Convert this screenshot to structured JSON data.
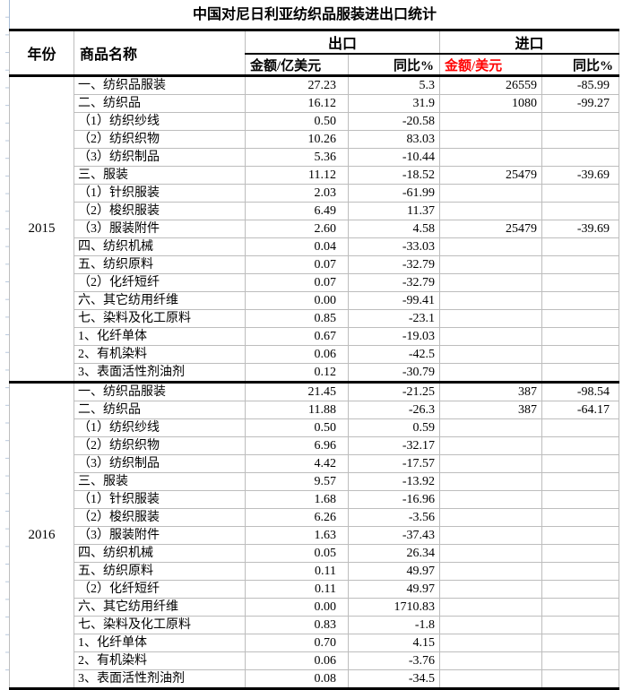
{
  "title": "中国对尼日利亚纺织品服装进出口统计",
  "header": {
    "year": "年份",
    "commodity": "商品名称",
    "export_group": "出口",
    "import_group": "进口",
    "export_amount": "金额/亿美元",
    "export_yoy": "同比%",
    "import_amount": "金额/美元",
    "import_yoy": "同比%"
  },
  "colors": {
    "import_amount_header": "#ff0000",
    "heavy_border": "#000000",
    "grid_line": "#bdbdbd",
    "excel_gridline": "#a9bdd6"
  },
  "chart_data": {
    "type": "table",
    "title": "中国对尼日利亚纺织品服装进出口统计",
    "column_groups": [
      "出口",
      "进口"
    ],
    "columns": [
      "年份",
      "商品名称",
      "出口 金额/亿美元",
      "出口 同比%",
      "进口 金额/美元",
      "进口 同比%"
    ],
    "sections": [
      {
        "year": "2015",
        "rows": [
          [
            "一、纺织品服装",
            "27.23",
            "5.3",
            "26559",
            "-85.99"
          ],
          [
            "二、纺织品",
            "16.12",
            "31.9",
            "1080",
            "-99.27"
          ],
          [
            "（1）纺织纱线",
            "0.50",
            "-20.58",
            "",
            ""
          ],
          [
            "（2）纺织织物",
            "10.26",
            "83.03",
            "",
            ""
          ],
          [
            "（3）纺织制品",
            "5.36",
            "-10.44",
            "",
            ""
          ],
          [
            "三、服装",
            "11.12",
            "-18.52",
            "25479",
            "-39.69"
          ],
          [
            "（1）针织服装",
            "2.03",
            "-61.99",
            "",
            ""
          ],
          [
            "（2）梭织服装",
            "6.49",
            "11.37",
            "",
            ""
          ],
          [
            "（3）服装附件",
            "2.60",
            "4.58",
            "25479",
            "-39.69"
          ],
          [
            "四、纺织机械",
            "0.04",
            "-33.03",
            "",
            ""
          ],
          [
            "五、纺织原料",
            "0.07",
            "-32.79",
            "",
            ""
          ],
          [
            "（2）化纤短纤",
            "0.07",
            "-32.79",
            "",
            ""
          ],
          [
            "六、其它纺用纤维",
            "0.00",
            "-99.41",
            "",
            ""
          ],
          [
            "七、染料及化工原料",
            "0.85",
            "-23.1",
            "",
            ""
          ],
          [
            "1、化纤单体",
            "0.67",
            "-19.03",
            "",
            ""
          ],
          [
            "2、有机染料",
            "0.06",
            "-42.5",
            "",
            ""
          ],
          [
            "3、表面活性剂油剂",
            "0.12",
            "-30.79",
            "",
            ""
          ]
        ]
      },
      {
        "year": "2016",
        "rows": [
          [
            "一、纺织品服装",
            "21.45",
            "-21.25",
            "387",
            "-98.54"
          ],
          [
            "二、纺织品",
            "11.88",
            "-26.3",
            "387",
            "-64.17"
          ],
          [
            "（1）纺织纱线",
            "0.50",
            "0.59",
            "",
            ""
          ],
          [
            "（2）纺织织物",
            "6.96",
            "-32.17",
            "",
            ""
          ],
          [
            "（3）纺织制品",
            "4.42",
            "-17.57",
            "",
            ""
          ],
          [
            "三、服装",
            "9.57",
            "-13.92",
            "",
            ""
          ],
          [
            "（1）针织服装",
            "1.68",
            "-16.96",
            "",
            ""
          ],
          [
            "（2）梭织服装",
            "6.26",
            "-3.56",
            "",
            ""
          ],
          [
            "（3）服装附件",
            "1.63",
            "-37.43",
            "",
            ""
          ],
          [
            "四、纺织机械",
            "0.05",
            "26.34",
            "",
            ""
          ],
          [
            "五、纺织原料",
            "0.11",
            "49.97",
            "",
            ""
          ],
          [
            "（2）化纤短纤",
            "0.11",
            "49.97",
            "",
            ""
          ],
          [
            "六、其它纺用纤维",
            "0.00",
            "1710.83",
            "",
            ""
          ],
          [
            "七、染料及化工原料",
            "0.83",
            "-1.8",
            "",
            ""
          ],
          [
            "1、化纤单体",
            "0.70",
            "4.15",
            "",
            ""
          ],
          [
            "2、有机染料",
            "0.06",
            "-3.76",
            "",
            ""
          ],
          [
            "3、表面活性剂油剂",
            "0.08",
            "-34.5",
            "",
            ""
          ]
        ]
      }
    ]
  }
}
